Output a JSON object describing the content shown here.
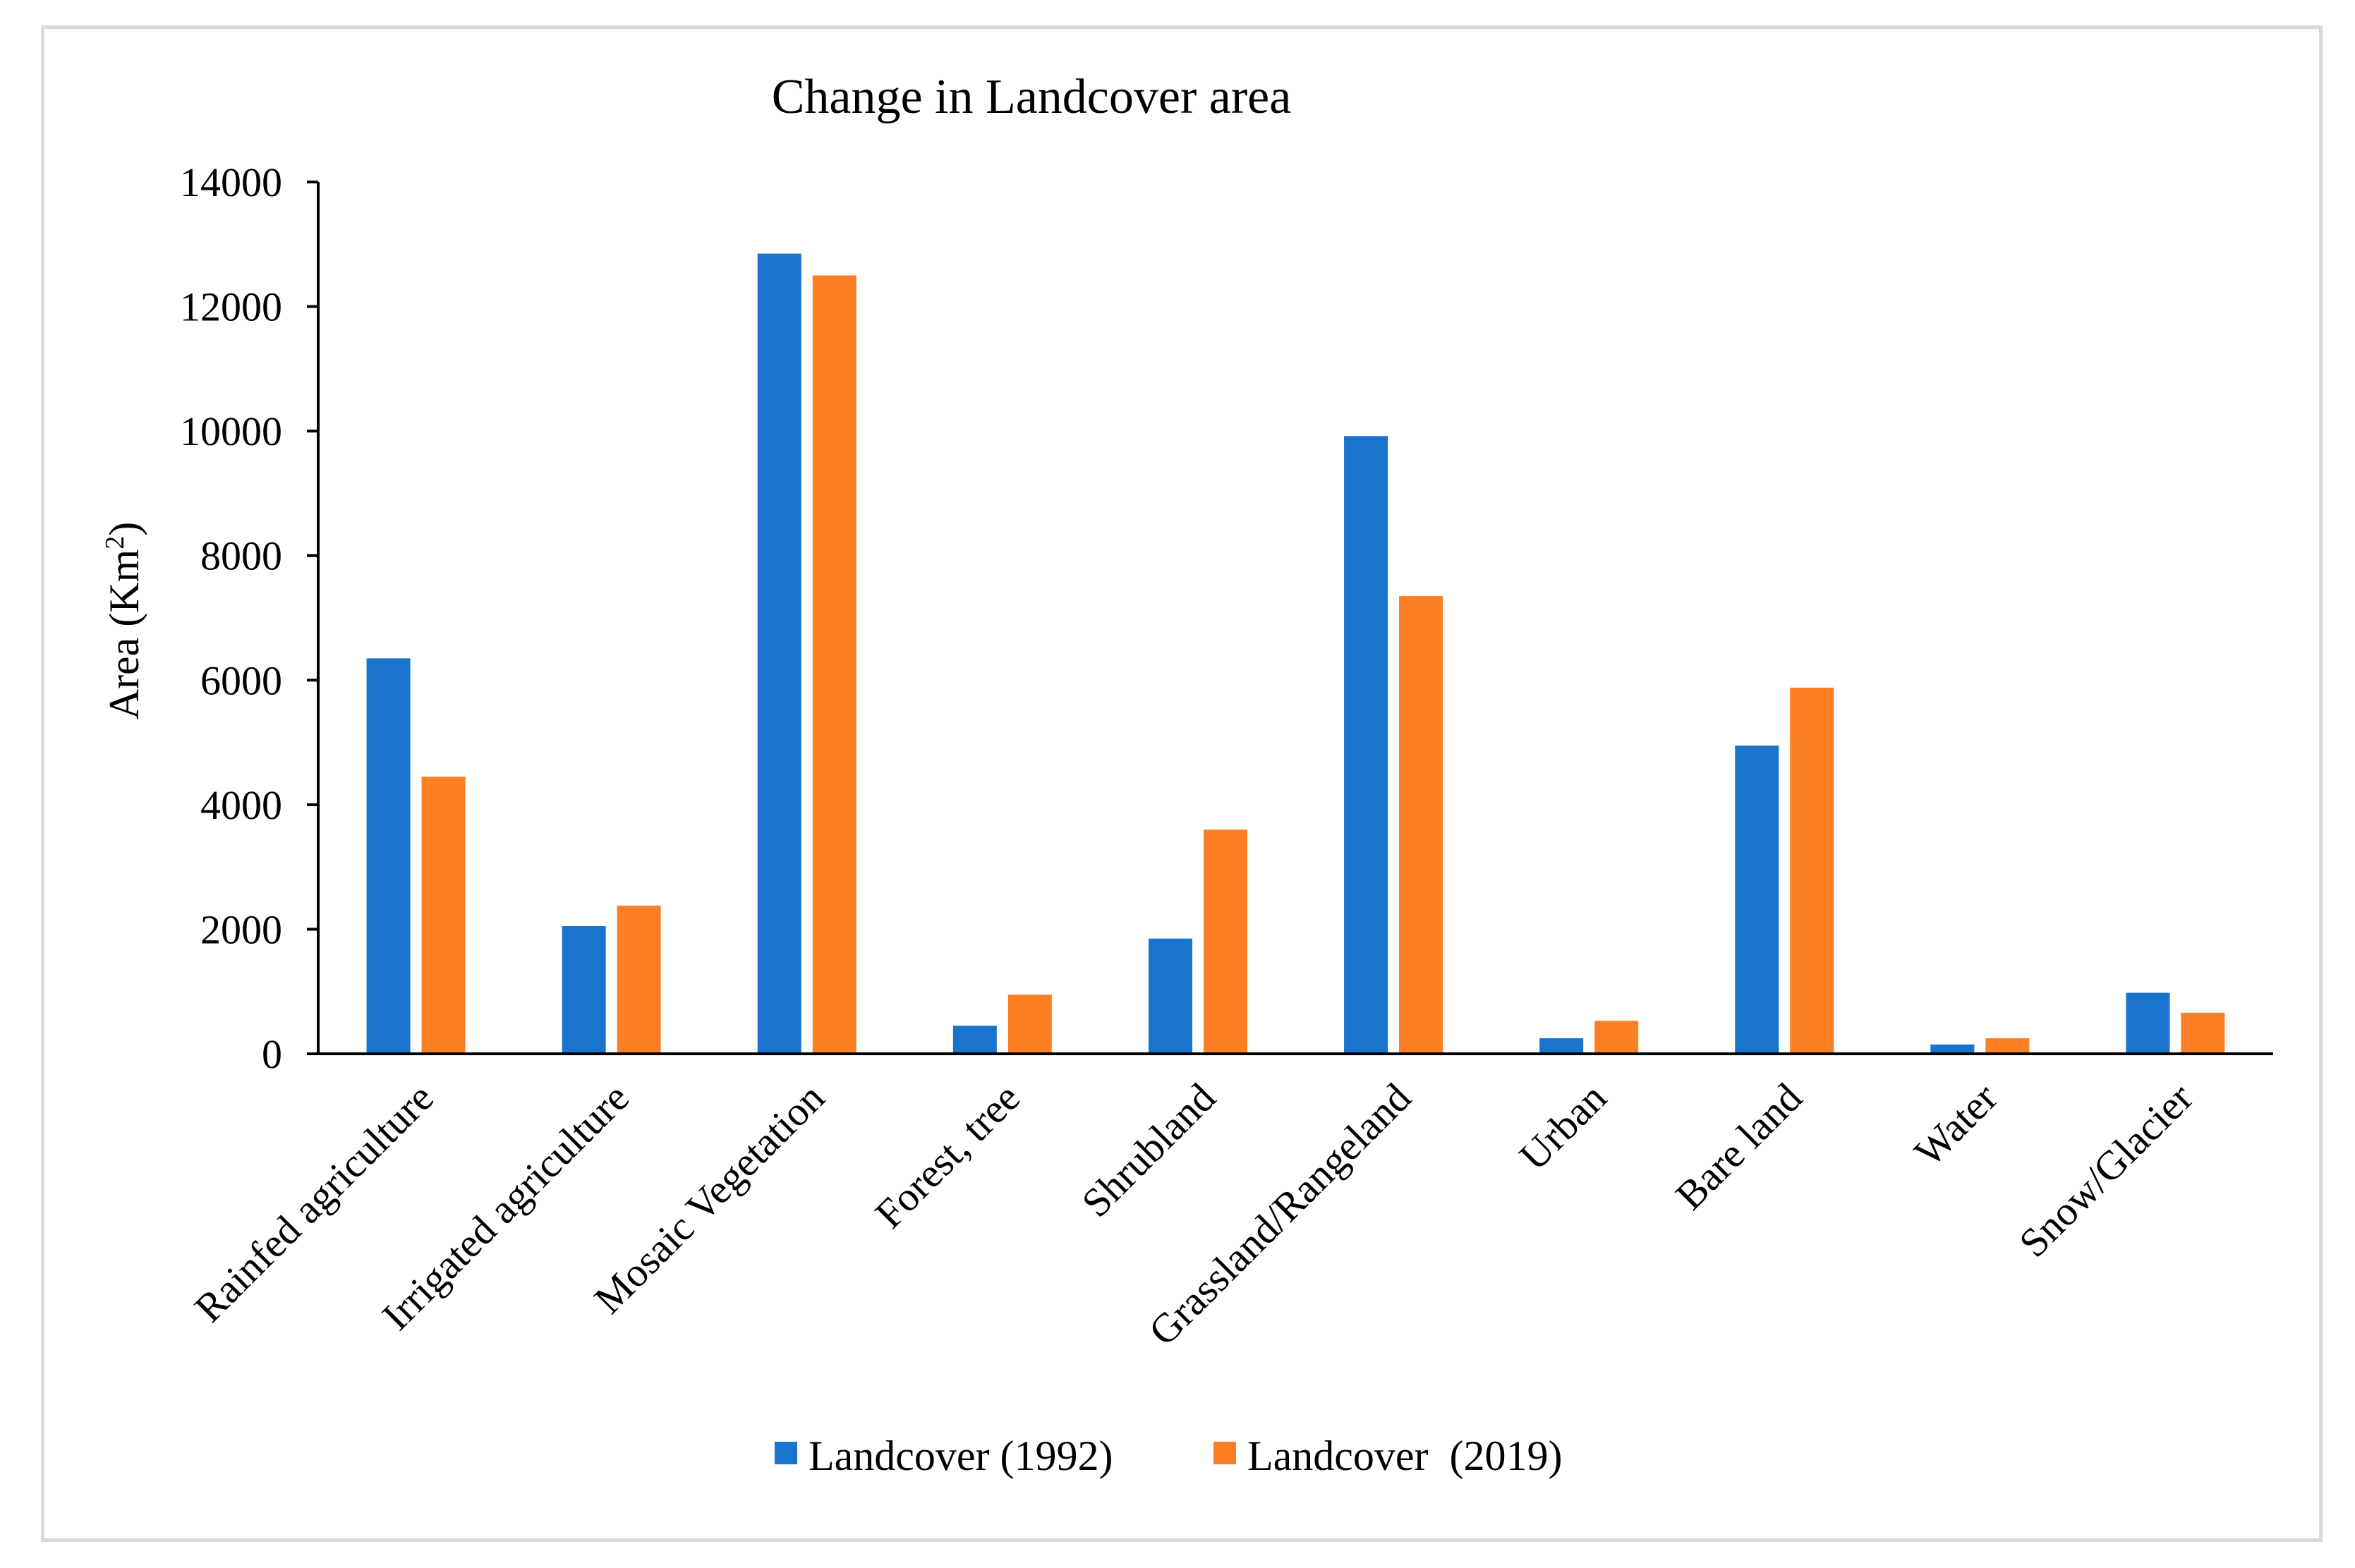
{
  "chart_data": {
    "type": "bar",
    "title": "Change in Landcover area",
    "ylabel_prefix": "Area (Km",
    "ylabel_superscript": "2",
    "ylabel_suffix": ")",
    "xlabel": "",
    "ylim": [
      0,
      14000
    ],
    "yticks": [
      "0",
      "2000",
      "4000",
      "6000",
      "8000",
      "10000",
      "12000",
      "14000"
    ],
    "grid": false,
    "legend_position": "bottom-center",
    "categories": [
      "Rainfed agriculture",
      "Irrigated agriculture",
      "Mosaic Vegetation",
      "Forest, tree",
      "Shrubland",
      "Grassland/Rangeland",
      "Urban",
      "Bare land",
      "Water",
      "Snow/Glacier"
    ],
    "series": [
      {
        "name": "Landcover (1992)",
        "color": "#1874cd",
        "values": [
          6350,
          2050,
          12850,
          450,
          1850,
          9920,
          250,
          4950,
          150,
          980
        ]
      },
      {
        "name": "Landcover  (2019)",
        "color": "#fd7f23",
        "values": [
          4450,
          2380,
          12500,
          950,
          3600,
          7350,
          530,
          5880,
          250,
          660
        ]
      }
    ]
  }
}
